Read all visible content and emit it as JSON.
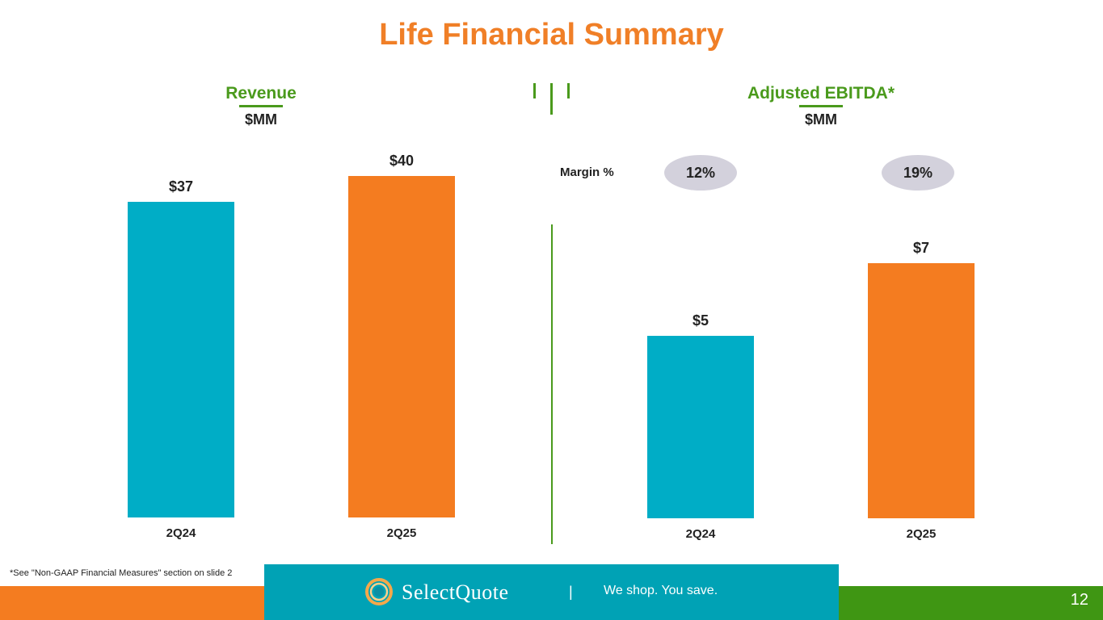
{
  "title": "Life Financial Summary",
  "colors": {
    "title": "#f07f27",
    "section_title": "#4a9a1c",
    "accent_green": "#4a9a1c",
    "bar_2q24": "#00adc6",
    "bar_2q25": "#f47c20",
    "footer_orange": "#f47c20",
    "footer_teal": "#00a2b5",
    "footer_green": "#3f9613",
    "pill": "#d3d1dc"
  },
  "revenue": {
    "title": "Revenue",
    "unit": "$MM"
  },
  "ebitda": {
    "title": "Adjusted EBITDA*",
    "unit": "$MM",
    "margin_label": "Margin %",
    "margins": [
      "12%",
      "19%"
    ]
  },
  "chart_data": [
    {
      "type": "bar",
      "title": "Revenue",
      "ylabel": "$MM",
      "categories": [
        "2Q24",
        "2Q25"
      ],
      "values": [
        37,
        40
      ],
      "data_labels": [
        "$37",
        "$40"
      ],
      "ylim": [
        0,
        40
      ],
      "grid": false
    },
    {
      "type": "bar",
      "title": "Adjusted EBITDA*",
      "ylabel": "$MM",
      "categories": [
        "2Q24",
        "2Q25"
      ],
      "values": [
        5,
        7
      ],
      "data_labels": [
        "$5",
        "$7"
      ],
      "margins": [
        "12%",
        "19%"
      ],
      "ylim": [
        0,
        7
      ],
      "grid": false
    }
  ],
  "footer": {
    "footnote": "*See \"Non-GAAP Financial Measures\" section on slide 2",
    "logo_text": "SelectQuote",
    "separator": "|",
    "tagline": "We shop. You save.",
    "page_number": "12"
  }
}
